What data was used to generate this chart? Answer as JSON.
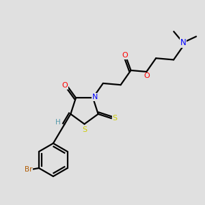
{
  "background_color": "#e0e0e0",
  "bond_color": "#000000",
  "atom_colors": {
    "N": "#0000ff",
    "O": "#ff0000",
    "S": "#cccc00",
    "Br": "#b05a00",
    "H": "#5599aa",
    "C": "#000000"
  },
  "figsize": [
    3.0,
    3.0
  ],
  "dpi": 100
}
